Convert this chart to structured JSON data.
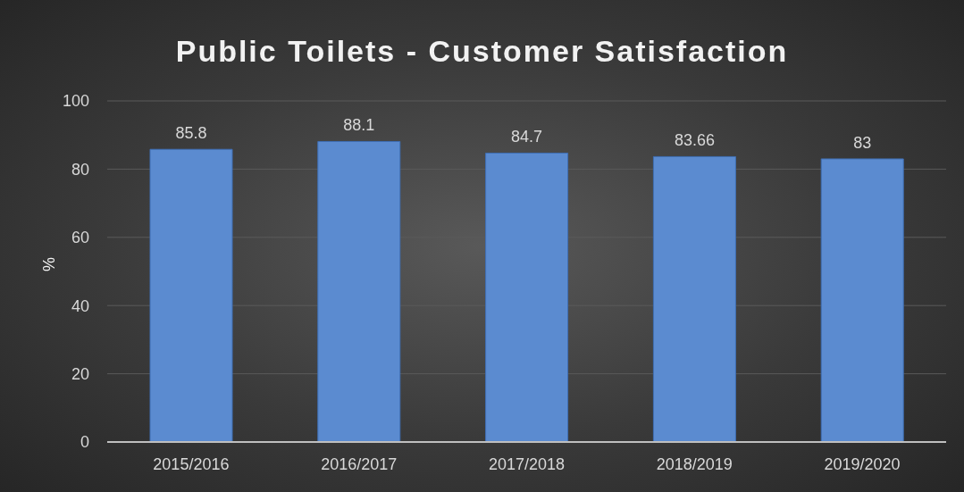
{
  "chart_data": {
    "type": "bar",
    "title": "Public Toilets - Customer Satisfaction",
    "ylabel": "%",
    "categories": [
      "2015/2016",
      "2016/2017",
      "2017/2018",
      "2018/2019",
      "2019/2020"
    ],
    "values": [
      85.8,
      88.1,
      84.7,
      83.66,
      83
    ],
    "color": "#5b8bd0",
    "ylim": [
      0,
      100
    ],
    "yticks": [
      0,
      20,
      40,
      60,
      80,
      100
    ],
    "grid": "y",
    "data_labels": true
  }
}
